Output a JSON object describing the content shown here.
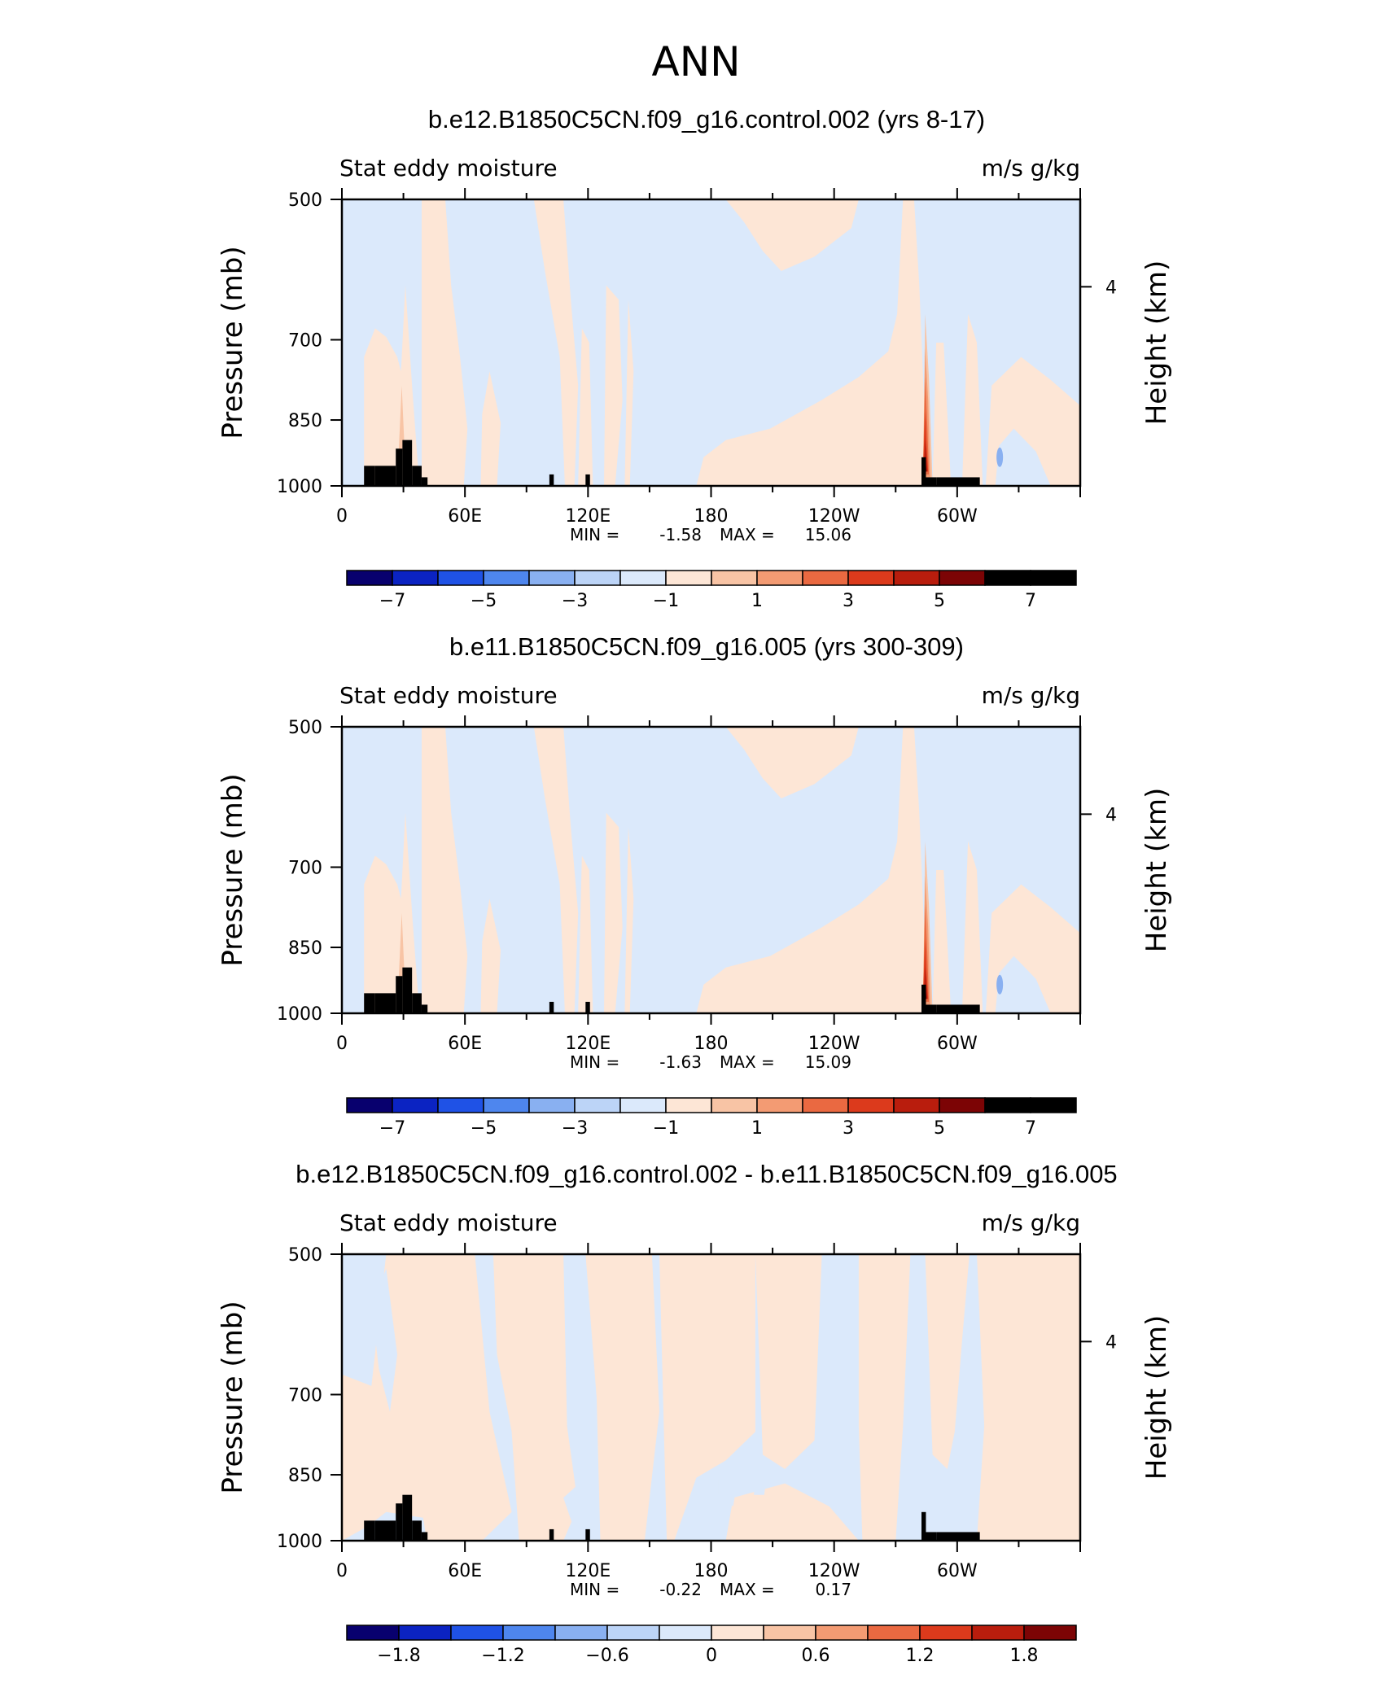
{
  "figure_title": "ANN",
  "panel_label_left": "Stat eddy moisture",
  "panel_label_right": "m/s g/kg",
  "colors": {
    "frame": "#000000",
    "topography": "#000000",
    "scale": [
      "#08006e",
      "#0b23c2",
      "#1f52e6",
      "#4e86ee",
      "#89b0f1",
      "#bcd4f7",
      "#dbe9fb",
      "#fde6d6",
      "#f8c4a5",
      "#f39b73",
      "#ea6941",
      "#dc3a1c",
      "#b91d0d",
      "#7c0405"
    ]
  },
  "chart_data": [
    {
      "type": "heatmap",
      "title": "b.e12.B1850C5CN.f09_g16.control.002 (yrs 8-17)",
      "ylabel": "Pressure (mb)",
      "ylabel_right": "Height (km)",
      "x_ticklabels": [
        "0",
        "60E",
        "120E",
        "180",
        "120W",
        "60W"
      ],
      "y_ticklabels": [
        "500",
        "700",
        "850",
        "1000"
      ],
      "y_right_ticklabels": [
        "4"
      ],
      "ylim": [
        1000,
        500
      ],
      "stats": {
        "min_label": "MIN =",
        "min_value": "-1.58",
        "max_label": "MAX =",
        "max_value": "15.06"
      },
      "colorbar_ticks": [
        "−7",
        "−5",
        "−3",
        "−1",
        "1",
        "3",
        "5",
        "7"
      ],
      "colorbar_levels": [
        -8,
        -7,
        -6,
        -5,
        -4,
        -3,
        -2,
        -1,
        0,
        1,
        2,
        3,
        4,
        5,
        6,
        7,
        8
      ],
      "dominant_field": "mostly small negative (light blue) over Indian Ocean, Pacific and S. Atlantic; positive (light orange) over Africa, Maritime Continent, E. Pacific and S. America; peak ≈15 at ~70W near 800–1000 mb"
    },
    {
      "type": "heatmap",
      "title": "b.e11.B1850C5CN.f09_g16.005 (yrs 300-309)",
      "ylabel": "Pressure (mb)",
      "ylabel_right": "Height (km)",
      "x_ticklabels": [
        "0",
        "60E",
        "120E",
        "180",
        "120W",
        "60W"
      ],
      "y_ticklabels": [
        "500",
        "700",
        "850",
        "1000"
      ],
      "y_right_ticklabels": [
        "4"
      ],
      "ylim": [
        1000,
        500
      ],
      "stats": {
        "min_label": "MIN =",
        "min_value": "-1.63",
        "max_label": "MAX =",
        "max_value": "15.09"
      },
      "colorbar_ticks": [
        "−7",
        "−5",
        "−3",
        "−1",
        "1",
        "3",
        "5",
        "7"
      ],
      "colorbar_levels": [
        -8,
        -7,
        -6,
        -5,
        -4,
        -3,
        -2,
        -1,
        0,
        1,
        2,
        3,
        4,
        5,
        6,
        7,
        8
      ],
      "dominant_field": "pattern nearly identical to top panel"
    },
    {
      "type": "heatmap",
      "title": "b.e12.B1850C5CN.f09_g16.control.002 - b.e11.B1850C5CN.f09_g16.005",
      "ylabel": "Pressure (mb)",
      "ylabel_right": "Height (km)",
      "x_ticklabels": [
        "0",
        "60E",
        "120E",
        "180",
        "120W",
        "60W"
      ],
      "y_ticklabels": [
        "500",
        "700",
        "850",
        "1000"
      ],
      "y_right_ticklabels": [
        "4"
      ],
      "ylim": [
        1000,
        500
      ],
      "stats": {
        "min_label": "MIN =",
        "min_value": "-0.22",
        "max_label": "MAX =",
        "max_value": "0.17"
      },
      "colorbar_ticks": [
        "−1.8",
        "−1.2",
        "−0.6",
        "0",
        "0.6",
        "1.2",
        "1.8"
      ],
      "colorbar_levels": [
        -2.1,
        -1.8,
        -1.5,
        -1.2,
        -0.9,
        -0.6,
        -0.3,
        0,
        0.3,
        0.6,
        0.9,
        1.2,
        1.5,
        1.8,
        2.1
      ],
      "dominant_field": "differences between -0.22 and 0.17: mostly light orange (0 to 0.3) with light blue (-0.3 to 0) patches"
    }
  ]
}
